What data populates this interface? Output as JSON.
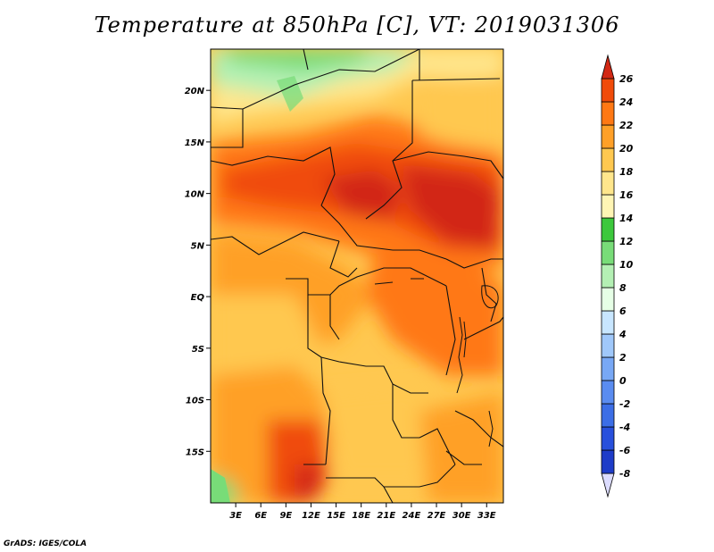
{
  "title": "Temperature at 850hPa [C], VT: 2019031306",
  "credit": "GrADS: IGES/COLA",
  "map": {
    "lat_range": [
      -20,
      24
    ],
    "lon_range": [
      0,
      35
    ],
    "lat_ticks": [
      {
        "value": 20,
        "label": "20N"
      },
      {
        "value": 15,
        "label": "15N"
      },
      {
        "value": 10,
        "label": "10N"
      },
      {
        "value": 5,
        "label": "5N"
      },
      {
        "value": 0,
        "label": "EQ"
      },
      {
        "value": -5,
        "label": "5S"
      },
      {
        "value": -10,
        "label": "10S"
      },
      {
        "value": -15,
        "label": "15S"
      }
    ],
    "lon_ticks": [
      {
        "value": 3,
        "label": "3E"
      },
      {
        "value": 6,
        "label": "6E"
      },
      {
        "value": 9,
        "label": "9E"
      },
      {
        "value": 12,
        "label": "12E"
      },
      {
        "value": 15,
        "label": "15E"
      },
      {
        "value": 18,
        "label": "18E"
      },
      {
        "value": 21,
        "label": "21E"
      },
      {
        "value": 24,
        "label": "24E"
      },
      {
        "value": 27,
        "label": "27E"
      },
      {
        "value": 30,
        "label": "30E"
      },
      {
        "value": 33,
        "label": "33E"
      }
    ]
  },
  "colorbar": {
    "levels": [
      "-8",
      "-6",
      "-4",
      "-2",
      "0",
      "2",
      "4",
      "6",
      "8",
      "10",
      "12",
      "14",
      "16",
      "18",
      "20",
      "22",
      "24",
      "26"
    ],
    "colors": [
      "#0a0a78",
      "#1e3cc8",
      "#2850dc",
      "#3c6ee6",
      "#5a8cf0",
      "#78a8f5",
      "#a0c8fa",
      "#c8e6ff",
      "#e6ffe6",
      "#b4f0b4",
      "#78dc78",
      "#3cc83c",
      "#fff5b4",
      "#ffe68c",
      "#ffc850",
      "#ffa028",
      "#ff7814",
      "#f04b0a",
      "#d22814"
    ]
  }
}
